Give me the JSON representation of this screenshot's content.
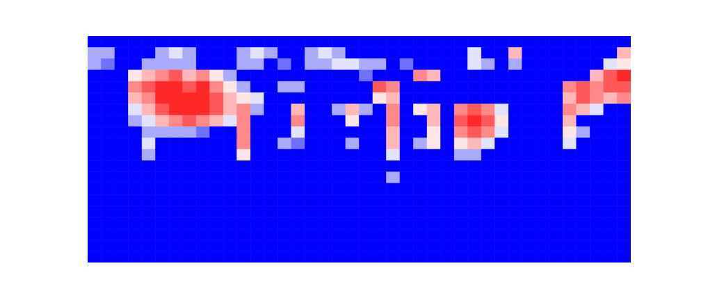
{
  "chart_data": {
    "type": "heatmap",
    "tick_labels": false,
    "color_range": [
      0,
      9
    ],
    "cells": [
      [
        0,
        0,
        0,
        0,
        0,
        0,
        0,
        0,
        0,
        0,
        0,
        0,
        0,
        0,
        0,
        0,
        0,
        0,
        0,
        0,
        0,
        0,
        0,
        0,
        0,
        0,
        0,
        0,
        0,
        0,
        0,
        0,
        0,
        0,
        0,
        0,
        0,
        0,
        0,
        0
      ],
      [
        3,
        3,
        0,
        0,
        0,
        3,
        4,
        3,
        0,
        0,
        0,
        3,
        4,
        3,
        0,
        0,
        3,
        4,
        3,
        0,
        0,
        0,
        0,
        0,
        0,
        0,
        0,
        0,
        4,
        0,
        0,
        6,
        0,
        0,
        0,
        0,
        0,
        0,
        0,
        6
      ],
      [
        3,
        2,
        0,
        0,
        3,
        3,
        3,
        3,
        0,
        0,
        0,
        3,
        3,
        0,
        2,
        0,
        3,
        3,
        4,
        4,
        3,
        3,
        0,
        2,
        0,
        0,
        0,
        0,
        4,
        3,
        0,
        3,
        0,
        0,
        0,
        0,
        0,
        0,
        4,
        5
      ],
      [
        0,
        0,
        0,
        5,
        6,
        7,
        8,
        6,
        7,
        5,
        3,
        0,
        0,
        0,
        0,
        0,
        0,
        0,
        0,
        0,
        2,
        0,
        0,
        0,
        7,
        6,
        0,
        0,
        0,
        0,
        0,
        0,
        0,
        0,
        0,
        0,
        0,
        6,
        8,
        9
      ],
      [
        0,
        0,
        0,
        7,
        8,
        9,
        9,
        8,
        9,
        7,
        5,
        3,
        0,
        0,
        3,
        3,
        0,
        0,
        0,
        0,
        0,
        8,
        7,
        0,
        0,
        0,
        0,
        0,
        0,
        0,
        0,
        0,
        0,
        0,
        0,
        7,
        8,
        7,
        8,
        8
      ],
      [
        0,
        0,
        0,
        6,
        7,
        9,
        9,
        9,
        9,
        8,
        6,
        5,
        4,
        0,
        0,
        0,
        0,
        0,
        0,
        0,
        0,
        5,
        6,
        0,
        0,
        0,
        0,
        0,
        0,
        0,
        0,
        0,
        0,
        0,
        0,
        6,
        8,
        7,
        6,
        7
      ],
      [
        0,
        0,
        0,
        4,
        6,
        8,
        9,
        9,
        9,
        8,
        6,
        7,
        3,
        0,
        0,
        6,
        0,
        0,
        3,
        6,
        3,
        0,
        7,
        0,
        5,
        6,
        0,
        7,
        8,
        7,
        4,
        0,
        0,
        0,
        0,
        7,
        6,
        4,
        0,
        0
      ],
      [
        0,
        0,
        0,
        3,
        4,
        6,
        7,
        8,
        7,
        6,
        4,
        7,
        0,
        0,
        0,
        7,
        0,
        0,
        0,
        5,
        0,
        0,
        7,
        0,
        0,
        6,
        0,
        8,
        9,
        8,
        5,
        0,
        0,
        0,
        0,
        6,
        0,
        0,
        0,
        0
      ],
      [
        0,
        0,
        0,
        0,
        3,
        3,
        3,
        3,
        2,
        0,
        0,
        7,
        0,
        0,
        0,
        4,
        0,
        0,
        0,
        0,
        0,
        0,
        6,
        0,
        0,
        5,
        0,
        7,
        8,
        7,
        4,
        0,
        0,
        0,
        0,
        5,
        3,
        0,
        0,
        0
      ],
      [
        0,
        0,
        0,
        0,
        4,
        0,
        0,
        0,
        0,
        0,
        0,
        7,
        0,
        0,
        3,
        2,
        0,
        0,
        0,
        3,
        0,
        0,
        6,
        0,
        3,
        5,
        0,
        5,
        6,
        4,
        0,
        0,
        0,
        0,
        0,
        4,
        0,
        0,
        0,
        0
      ],
      [
        0,
        0,
        0,
        0,
        3,
        0,
        0,
        0,
        0,
        0,
        0,
        5,
        0,
        0,
        0,
        0,
        0,
        0,
        0,
        0,
        0,
        0,
        4,
        0,
        0,
        0,
        0,
        3,
        3,
        0,
        0,
        0,
        0,
        0,
        0,
        0,
        0,
        0,
        0,
        0
      ],
      [
        0,
        0,
        0,
        0,
        0,
        0,
        0,
        0,
        0,
        0,
        0,
        0,
        0,
        0,
        0,
        0,
        0,
        0,
        0,
        0,
        0,
        0,
        0,
        0,
        0,
        0,
        0,
        0,
        0,
        0,
        0,
        0,
        0,
        0,
        0,
        0,
        0,
        0,
        0,
        0
      ],
      [
        0,
        0,
        0,
        0,
        0,
        0,
        0,
        0,
        0,
        0,
        0,
        0,
        0,
        0,
        0,
        0,
        0,
        0,
        0,
        0,
        0,
        0,
        3,
        0,
        0,
        0,
        0,
        0,
        0,
        0,
        0,
        0,
        0,
        0,
        0,
        0,
        0,
        0,
        0,
        0
      ],
      [
        0,
        0,
        0,
        0,
        0,
        0,
        0,
        0,
        0,
        0,
        0,
        0,
        0,
        0,
        0,
        0,
        0,
        0,
        0,
        0,
        0,
        0,
        0,
        0,
        0,
        0,
        0,
        0,
        0,
        0,
        0,
        0,
        0,
        0,
        0,
        0,
        0,
        0,
        0,
        0
      ],
      [
        0,
        0,
        0,
        0,
        0,
        0,
        0,
        0,
        0,
        0,
        0,
        0,
        0,
        0,
        0,
        0,
        0,
        0,
        0,
        0,
        0,
        0,
        0,
        0,
        0,
        0,
        0,
        0,
        0,
        0,
        0,
        0,
        0,
        0,
        0,
        0,
        0,
        0,
        0,
        0
      ],
      [
        0,
        0,
        0,
        0,
        0,
        0,
        0,
        0,
        0,
        0,
        0,
        0,
        0,
        0,
        0,
        0,
        0,
        0,
        0,
        0,
        0,
        0,
        0,
        0,
        0,
        0,
        0,
        0,
        0,
        0,
        0,
        0,
        0,
        0,
        0,
        0,
        0,
        0,
        0,
        0
      ],
      [
        0,
        0,
        0,
        0,
        0,
        0,
        0,
        0,
        0,
        0,
        0,
        0,
        0,
        0,
        0,
        0,
        0,
        0,
        0,
        0,
        0,
        0,
        0,
        0,
        0,
        0,
        0,
        0,
        0,
        0,
        0,
        0,
        0,
        0,
        0,
        0,
        0,
        0,
        0,
        0
      ],
      [
        0,
        0,
        0,
        0,
        0,
        0,
        0,
        0,
        0,
        0,
        0,
        0,
        0,
        0,
        0,
        0,
        0,
        0,
        0,
        0,
        0,
        0,
        0,
        0,
        0,
        0,
        0,
        0,
        0,
        0,
        0,
        0,
        0,
        0,
        0,
        0,
        0,
        0,
        0,
        0
      ],
      [
        0,
        0,
        0,
        0,
        0,
        0,
        0,
        0,
        0,
        0,
        0,
        0,
        0,
        0,
        0,
        0,
        0,
        0,
        0,
        0,
        0,
        0,
        0,
        0,
        0,
        0,
        0,
        0,
        0,
        0,
        0,
        0,
        0,
        0,
        0,
        0,
        0,
        0,
        0,
        0
      ],
      [
        0,
        0,
        0,
        0,
        0,
        0,
        0,
        0,
        0,
        0,
        0,
        0,
        0,
        0,
        0,
        0,
        0,
        0,
        0,
        0,
        0,
        0,
        0,
        0,
        0,
        0,
        0,
        0,
        0,
        0,
        0,
        0,
        0,
        0,
        0,
        0,
        0,
        0,
        0,
        0
      ]
    ]
  }
}
